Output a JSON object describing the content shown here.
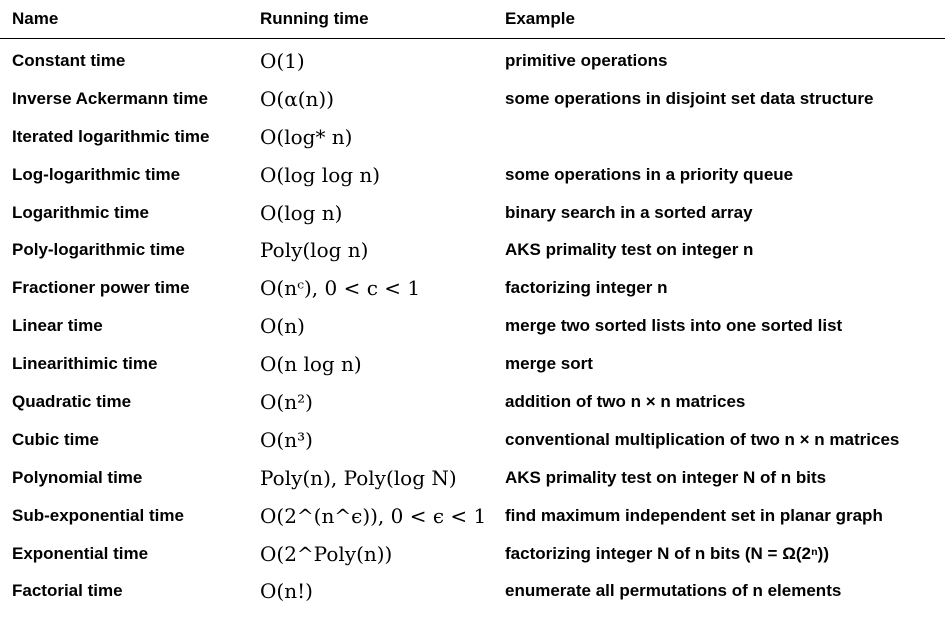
{
  "table": {
    "headers": {
      "name": "Name",
      "running_time": "Running time",
      "example": "Example"
    },
    "rows": [
      {
        "name": "Constant time",
        "running_time": "O(1)",
        "example": "primitive operations"
      },
      {
        "name": "Inverse Ackermann time",
        "running_time": "O(α(n))",
        "example": "some operations in disjoint set data structure"
      },
      {
        "name": "Iterated logarithmic time",
        "running_time": "O(log* n)",
        "example": ""
      },
      {
        "name": "Log-logarithmic time",
        "running_time": "O(log log n)",
        "example": "some operations in a priority queue"
      },
      {
        "name": "Logarithmic time",
        "running_time": "O(log n)",
        "example": "binary search in a sorted array"
      },
      {
        "name": "Poly-logarithmic time",
        "running_time": "Poly(log n)",
        "example": "AKS primality test on integer n"
      },
      {
        "name": "Fractioner power time",
        "running_time": "O(nᶜ), 0 < c < 1",
        "example": "factorizing integer n"
      },
      {
        "name": "Linear time",
        "running_time": "O(n)",
        "example": "merge two sorted lists into one sorted list"
      },
      {
        "name": "Linearithimic time",
        "running_time": "O(n log n)",
        "example": "merge sort"
      },
      {
        "name": "Quadratic time",
        "running_time": "O(n²)",
        "example": "addition of two n × n matrices"
      },
      {
        "name": "Cubic time",
        "running_time": "O(n³)",
        "example": "conventional multiplication of two n × n matrices"
      },
      {
        "name": "Polynomial time",
        "running_time": "Poly(n), Poly(log N)",
        "example": "AKS primality test on integer N of n bits"
      },
      {
        "name": "Sub-exponential time",
        "running_time": "O(2^(n^ϵ)), 0 < ϵ < 1",
        "example": "find maximum independent set in planar graph"
      },
      {
        "name": "Exponential time",
        "running_time": "O(2^Poly(n))",
        "example": "factorizing integer N of n bits (N = Ω(2ⁿ))"
      },
      {
        "name": "Factorial time",
        "running_time": "O(n!)",
        "example": "enumerate all permutations of n elements"
      }
    ]
  }
}
